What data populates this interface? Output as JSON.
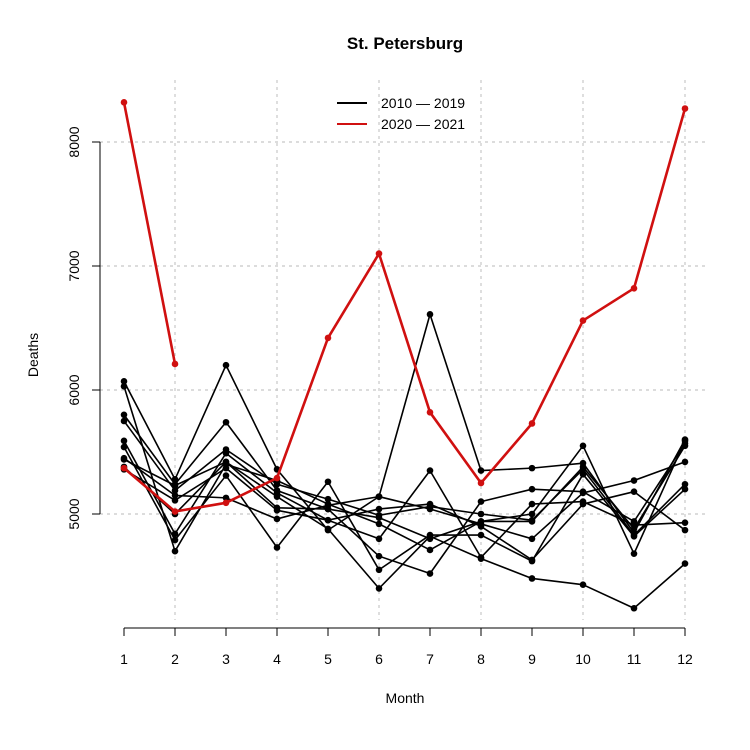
{
  "chart_data": {
    "type": "line",
    "title": "St. Petersburg",
    "xlabel": "Month",
    "ylabel": "Deaths",
    "x": [
      1,
      2,
      3,
      4,
      5,
      6,
      7,
      8,
      9,
      10,
      11,
      12
    ],
    "xlim": [
      1,
      12
    ],
    "ylim": [
      4100,
      8350
    ],
    "y_ticks": [
      5000,
      6000,
      7000,
      8000
    ],
    "grid": true,
    "legend_position": "top-center",
    "legend": [
      {
        "label": "2010 — 2019",
        "color": "#000000"
      },
      {
        "label": "2020 — 2021",
        "color": "#d01010"
      }
    ],
    "series": [
      {
        "group": "2010 — 2019",
        "color": "#000000",
        "values": [
          6070,
          5280,
          6200,
          5360,
          4870,
          5140,
          6610,
          5350,
          5370,
          5410,
          4850,
          5600
        ]
      },
      {
        "group": "2010 — 2019",
        "color": "#000000",
        "values": [
          6030,
          4700,
          5400,
          5270,
          5080,
          4920,
          4710,
          4940,
          5000,
          5550,
          4680,
          5590
        ]
      },
      {
        "group": "2010 — 2019",
        "color": "#000000",
        "values": [
          5800,
          5240,
          5740,
          5190,
          5040,
          4660,
          4520,
          5100,
          5200,
          5180,
          4940,
          5570
        ]
      },
      {
        "group": "2010 — 2019",
        "color": "#000000",
        "values": [
          5750,
          5190,
          5520,
          5240,
          5120,
          4990,
          5060,
          5000,
          4950,
          5360,
          4830,
          5240
        ]
      },
      {
        "group": "2010 — 2019",
        "color": "#000000",
        "values": [
          5590,
          4840,
          5490,
          5170,
          4950,
          4800,
          5350,
          4650,
          5080,
          5100,
          4910,
          4930
        ]
      },
      {
        "group": "2010 — 2019",
        "color": "#000000",
        "values": [
          5540,
          4790,
          5310,
          4730,
          5260,
          4550,
          4830,
          4830,
          4620,
          5320,
          4820,
          5200
        ]
      },
      {
        "group": "2010 — 2019",
        "color": "#000000",
        "values": [
          5450,
          5150,
          5130,
          4960,
          5070,
          5140,
          5040,
          4920,
          4800,
          5170,
          5270,
          5420
        ]
      },
      {
        "group": "2010 — 2019",
        "color": "#000000",
        "values": [
          5440,
          5230,
          5420,
          5050,
          5040,
          4970,
          4800,
          4940,
          4940,
          5380,
          4880,
          5550
        ]
      },
      {
        "group": "2010 — 2019",
        "color": "#000000",
        "values": [
          5380,
          5000,
          5420,
          5140,
          4880,
          4400,
          4820,
          4640,
          4480,
          4430,
          4240,
          4600
        ]
      },
      {
        "group": "2010 — 2019",
        "color": "#000000",
        "values": [
          5360,
          5110,
          5370,
          5030,
          4950,
          5040,
          5080,
          4900,
          4630,
          5080,
          5180,
          4870
        ]
      },
      {
        "group": "2020 — 2021",
        "color": "#d01010",
        "values": [
          8320,
          6210,
          null,
          null,
          null,
          null,
          null,
          null,
          null,
          null,
          null,
          null
        ]
      },
      {
        "group": "2020 — 2021",
        "color": "#d01010",
        "values": [
          5370,
          5020,
          5090,
          5290,
          6420,
          7100,
          5820,
          5250,
          5730,
          6560,
          6820,
          8270
        ]
      }
    ]
  }
}
